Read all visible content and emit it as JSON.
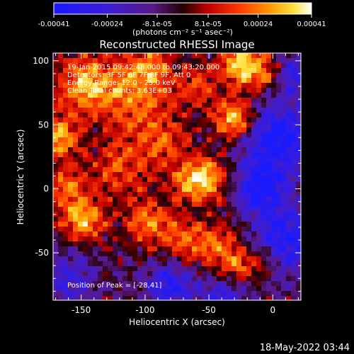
{
  "chart_data": {
    "type": "heatmap",
    "title": "Reconstructed RHESSI Image",
    "xlabel": "Heliocentric X (arcsec)",
    "ylabel": "Heliocentric Y (arcsec)",
    "xlim": [
      -172,
      22
    ],
    "ylim": [
      -87,
      106
    ],
    "xticks": [
      -150,
      -100,
      -50,
      0
    ],
    "yticks": [
      -50,
      0,
      50,
      100
    ],
    "colorbar": {
      "range": [
        -0.00041,
        0.00041
      ],
      "tick_labels": [
        "-0.00041",
        "-0.00024",
        "-8.1e-05",
        "8.1e-05",
        "0.00024",
        "0.00041"
      ],
      "units": "(photons cm⁻² s⁻¹ asec⁻²)",
      "colormap": "blue-purple-red-orange-yellow-white"
    },
    "annotations": [
      "19-Jan-2015 09:42:48.000 to 09:43:20.000",
      "Detectors: 3F 5F 6F 7F 8F 9F, Att 0",
      "Energy Range: 12.0 - 25.0 keV",
      "Clean    Total counts: 3.63E+03"
    ],
    "peak_label": "Position of Peak = [-28,41]",
    "peak": [
      -28,
      41
    ],
    "timestamp": "18-May-2022 03:44",
    "sources": [
      {
        "x": -25,
        "y": 97,
        "r": 12,
        "a": 1.0
      },
      {
        "x": -30,
        "y": 55,
        "r": 11,
        "a": 1.05
      },
      {
        "x": -52,
        "y": 8,
        "r": 12,
        "a": 1.0
      },
      {
        "x": -148,
        "y": 82,
        "r": 16,
        "a": 0.8
      },
      {
        "x": -110,
        "y": 72,
        "r": 22,
        "a": 0.65
      },
      {
        "x": -168,
        "y": 40,
        "r": 12,
        "a": 0.85
      },
      {
        "x": -148,
        "y": -25,
        "r": 12,
        "a": 0.85
      },
      {
        "x": -120,
        "y": 15,
        "r": 16,
        "a": 0.55
      },
      {
        "x": -98,
        "y": -25,
        "r": 14,
        "a": 0.6
      },
      {
        "x": -72,
        "y": -40,
        "r": 12,
        "a": 0.55
      },
      {
        "x": -45,
        "y": -45,
        "r": 14,
        "a": 0.6
      },
      {
        "x": -25,
        "y": -60,
        "r": 10,
        "a": 0.55
      },
      {
        "x": -85,
        "y": 35,
        "r": 14,
        "a": 0.5
      },
      {
        "x": -160,
        "y": 0,
        "r": 12,
        "a": 0.6
      },
      {
        "x": -60,
        "y": 80,
        "r": 12,
        "a": 0.45
      },
      {
        "x": -5,
        "y": 90,
        "r": 10,
        "a": 0.5
      },
      {
        "x": -95,
        "y": 95,
        "r": 12,
        "a": 0.55
      },
      {
        "x": -5,
        "y": -55,
        "r": 9,
        "a": 0.35
      },
      {
        "x": -70,
        "y": 5,
        "r": 10,
        "a": 0.45
      }
    ],
    "negatives": [
      {
        "x": 5,
        "y": 40,
        "r": 20,
        "a": 0.9
      },
      {
        "x": -10,
        "y": 0,
        "r": 14,
        "a": 0.85
      },
      {
        "x": 10,
        "y": -40,
        "r": 18,
        "a": 0.8
      },
      {
        "x": -80,
        "y": -75,
        "r": 14,
        "a": 0.7
      },
      {
        "x": -40,
        "y": -85,
        "r": 12,
        "a": 0.6
      },
      {
        "x": -160,
        "y": -70,
        "r": 15,
        "a": 0.5
      },
      {
        "x": 15,
        "y": 90,
        "r": 10,
        "a": 0.6
      }
    ]
  }
}
